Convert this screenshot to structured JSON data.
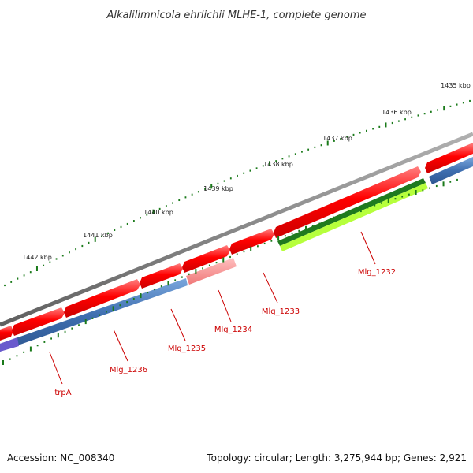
{
  "title": "Alkalilimnicola ehrlichii MLHE-1, complete genome",
  "scale_labels": [
    "1435 kbp",
    "1436 kbp",
    "1437 kbp",
    "1438 kbp",
    "1439 kbp",
    "1440 kbp",
    "1441 kbp",
    "1442 kbp"
  ],
  "gene_labels": [
    "Mlg_1232",
    "Mlg_1233",
    "Mlg_1234",
    "Mlg_1235",
    "Mlg_1236",
    "trpA"
  ],
  "footer": {
    "accession": "Accession: NC_008340",
    "summary": "Topology: circular; Length: 3,275,944 bp; Genes: 2,921"
  },
  "colors": {
    "backbone": "#808080",
    "cds_forward": "#ff0000",
    "cds_highlight": "#ff8f8f",
    "reverse_track": "#3f6fb0",
    "rna_dark": "#1f7a1f",
    "rna_light": "#b6ff3c",
    "tick": "#1a7a1a",
    "label": "#cc0000"
  }
}
